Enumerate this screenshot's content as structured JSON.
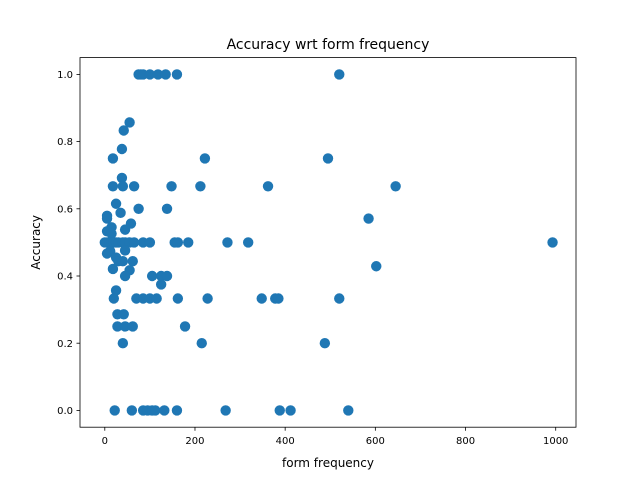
{
  "chart_data": {
    "type": "scatter",
    "title": "Accuracy wrt form frequency",
    "xlabel": "form frequency",
    "ylabel": "Accuracy",
    "xlim": [
      -55,
      1045
    ],
    "ylim": [
      -0.05,
      1.05
    ],
    "xticks": [
      0,
      200,
      400,
      600,
      800,
      1000
    ],
    "yticks": [
      0.0,
      0.2,
      0.4,
      0.6,
      0.8,
      1.0
    ],
    "xtick_labels": [
      "0",
      "200",
      "400",
      "600",
      "800",
      "1000"
    ],
    "ytick_labels": [
      "0.0",
      "0.2",
      "0.4",
      "0.6",
      "0.8",
      "1.0"
    ],
    "grid": false,
    "marker_color": "#1f77b4",
    "series": [
      {
        "points": [
          [
            75,
            1.0
          ],
          [
            80,
            1.0
          ],
          [
            85,
            1.0
          ],
          [
            100,
            1.0
          ],
          [
            118,
            1.0
          ],
          [
            135,
            1.0
          ],
          [
            160,
            1.0
          ],
          [
            520,
            1.0
          ],
          [
            55,
            0.857
          ],
          [
            42,
            0.833
          ],
          [
            38,
            0.778
          ],
          [
            18,
            0.75
          ],
          [
            222,
            0.75
          ],
          [
            495,
            0.75
          ],
          [
            38,
            0.692
          ],
          [
            18,
            0.667
          ],
          [
            40,
            0.667
          ],
          [
            65,
            0.667
          ],
          [
            148,
            0.667
          ],
          [
            212,
            0.667
          ],
          [
            362,
            0.667
          ],
          [
            645,
            0.667
          ],
          [
            25,
            0.615
          ],
          [
            75,
            0.6
          ],
          [
            138,
            0.6
          ],
          [
            35,
            0.588
          ],
          [
            5,
            0.579
          ],
          [
            5,
            0.571
          ],
          [
            585,
            0.571
          ],
          [
            58,
            0.556
          ],
          [
            15,
            0.545
          ],
          [
            45,
            0.538
          ],
          [
            5,
            0.533
          ],
          [
            15,
            0.526
          ],
          [
            0,
            0.5
          ],
          [
            5,
            0.5
          ],
          [
            10,
            0.5
          ],
          [
            15,
            0.5
          ],
          [
            20,
            0.5
          ],
          [
            25,
            0.5
          ],
          [
            30,
            0.5
          ],
          [
            40,
            0.5
          ],
          [
            45,
            0.5
          ],
          [
            55,
            0.5
          ],
          [
            65,
            0.5
          ],
          [
            85,
            0.5
          ],
          [
            100,
            0.5
          ],
          [
            155,
            0.5
          ],
          [
            162,
            0.5
          ],
          [
            185,
            0.5
          ],
          [
            272,
            0.5
          ],
          [
            318,
            0.5
          ],
          [
            993,
            0.5
          ],
          [
            12,
            0.474
          ],
          [
            5,
            0.467
          ],
          [
            45,
            0.476
          ],
          [
            25,
            0.455
          ],
          [
            30,
            0.444
          ],
          [
            40,
            0.444
          ],
          [
            62,
            0.444
          ],
          [
            602,
            0.429
          ],
          [
            18,
            0.421
          ],
          [
            55,
            0.417
          ],
          [
            45,
            0.4
          ],
          [
            105,
            0.4
          ],
          [
            125,
            0.4
          ],
          [
            138,
            0.4
          ],
          [
            125,
            0.375
          ],
          [
            25,
            0.357
          ],
          [
            20,
            0.333
          ],
          [
            70,
            0.333
          ],
          [
            85,
            0.333
          ],
          [
            100,
            0.333
          ],
          [
            115,
            0.333
          ],
          [
            162,
            0.333
          ],
          [
            228,
            0.333
          ],
          [
            348,
            0.333
          ],
          [
            378,
            0.333
          ],
          [
            385,
            0.333
          ],
          [
            520,
            0.333
          ],
          [
            28,
            0.286
          ],
          [
            42,
            0.286
          ],
          [
            28,
            0.25
          ],
          [
            45,
            0.25
          ],
          [
            62,
            0.25
          ],
          [
            178,
            0.25
          ],
          [
            40,
            0.2
          ],
          [
            215,
            0.2
          ],
          [
            488,
            0.2
          ],
          [
            22,
            0.0
          ],
          [
            60,
            0.0
          ],
          [
            85,
            0.0
          ],
          [
            95,
            0.0
          ],
          [
            105,
            0.0
          ],
          [
            112,
            0.0
          ],
          [
            132,
            0.0
          ],
          [
            160,
            0.0
          ],
          [
            268,
            0.0
          ],
          [
            388,
            0.0
          ],
          [
            412,
            0.0
          ],
          [
            540,
            0.0
          ]
        ]
      }
    ]
  }
}
